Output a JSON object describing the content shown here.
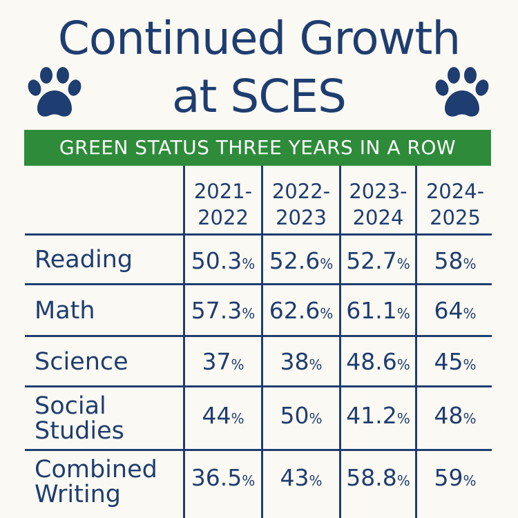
{
  "title": {
    "line1": "Continued Growth",
    "line2": "at SCES"
  },
  "banner": "GREEN STATUS THREE YEARS IN A ROW",
  "columns": [
    {
      "line1": "2021-",
      "line2": "2022"
    },
    {
      "line1": "2022-",
      "line2": "2023"
    },
    {
      "line1": "2023-",
      "line2": "2024"
    },
    {
      "line1": "2024-",
      "line2": "2025"
    }
  ],
  "rows": [
    {
      "label1": "Reading",
      "label2": "",
      "values": [
        "50.3",
        "52.6",
        "52.7",
        "58"
      ]
    },
    {
      "label1": "Math",
      "label2": "",
      "values": [
        "57.3",
        "62.6",
        "61.1",
        "64"
      ]
    },
    {
      "label1": "Science",
      "label2": "",
      "values": [
        "37",
        "38",
        "48.6",
        "45"
      ]
    },
    {
      "label1": "Social",
      "label2": "Studies",
      "values": [
        "44",
        "50",
        "41.2",
        "48"
      ]
    },
    {
      "label1": "Combined",
      "label2": "Writing",
      "values": [
        "36.5",
        "43",
        "58.8",
        "59"
      ]
    }
  ],
  "percent_sign": "%",
  "icons": [
    "paw-icon",
    "paw-icon"
  ],
  "colors": {
    "navy": "#1e3d70",
    "green": "#2e8b3a",
    "background": "#fbf9f3"
  }
}
